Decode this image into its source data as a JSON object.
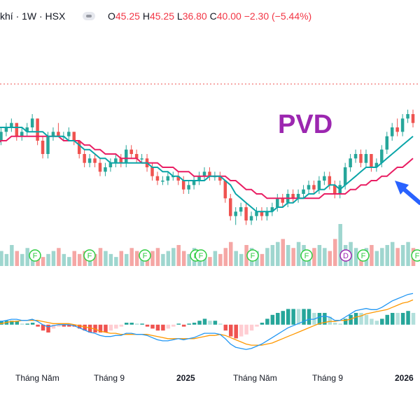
{
  "header": {
    "symbol_label": "khí · 1W · HSX",
    "open_label": "O",
    "open_value": "45.25",
    "high_label": "H",
    "high_value": "45.25",
    "low_label": "L",
    "low_value": "36.80",
    "close_label": "C",
    "close_value": "40.00",
    "change_value": "−2.30",
    "change_percent": "(−5.44%)"
  },
  "watermark": {
    "ticker": "PVD",
    "color": "#9c27b0"
  },
  "colors": {
    "up": "#26a69a",
    "down": "#ef5350",
    "ma_fast": "#0aa5a8",
    "ma_slow": "#e91e63",
    "macd_line": "#2196f3",
    "signal_line": "#ff9800",
    "dashed_level": "#ef5350",
    "arrow": "#2962ff"
  },
  "xaxis": {
    "labels": [
      "Tháng Năm",
      "Tháng 9",
      "2025",
      "Tháng Năm",
      "Tháng 9",
      "2026"
    ]
  },
  "event_markers": [
    {
      "label": "F"
    },
    {
      "label": "F"
    },
    {
      "label": "F"
    },
    {
      "label": "F"
    },
    {
      "label": "F"
    },
    {
      "label": "F"
    },
    {
      "label": "F"
    },
    {
      "label": "D"
    },
    {
      "label": "F"
    },
    {
      "label": "F"
    }
  ],
  "chart_data": {
    "type": "candlestick",
    "title": "",
    "note": "weekly candles, values in price units estimated from visual; no price axis printed",
    "candles": [
      [
        44,
        45,
        42,
        43
      ],
      [
        43,
        46,
        42,
        45
      ],
      [
        45,
        47,
        44,
        46
      ],
      [
        46,
        48,
        45,
        47
      ],
      [
        47,
        47,
        43,
        44
      ],
      [
        44,
        46,
        43,
        45
      ],
      [
        45,
        47,
        44,
        46
      ],
      [
        46,
        49,
        45,
        48
      ],
      [
        48,
        48,
        42,
        43
      ],
      [
        43,
        44,
        39,
        40
      ],
      [
        40,
        45,
        39,
        44
      ],
      [
        44,
        46,
        43,
        45
      ],
      [
        45,
        47,
        44,
        44
      ],
      [
        44,
        45,
        43,
        44
      ],
      [
        44,
        46,
        43,
        45
      ],
      [
        45,
        45,
        42,
        43
      ],
      [
        43,
        43,
        39,
        40
      ],
      [
        40,
        41,
        37,
        38
      ],
      [
        38,
        40,
        37,
        39
      ],
      [
        39,
        40,
        37,
        38
      ],
      [
        38,
        39,
        35,
        36
      ],
      [
        36,
        38,
        35,
        37
      ],
      [
        37,
        39,
        36,
        38
      ],
      [
        38,
        40,
        37,
        39
      ],
      [
        39,
        40,
        37,
        38
      ],
      [
        38,
        42,
        37,
        41
      ],
      [
        41,
        42,
        39,
        40
      ],
      [
        40,
        41,
        38,
        39
      ],
      [
        39,
        40,
        38,
        39
      ],
      [
        39,
        40,
        36,
        37
      ],
      [
        37,
        38,
        34,
        35
      ],
      [
        35,
        36,
        33,
        34
      ],
      [
        34,
        35,
        33,
        34
      ],
      [
        34,
        36,
        33,
        35
      ],
      [
        35,
        36,
        34,
        35
      ],
      [
        35,
        36,
        33,
        34
      ],
      [
        34,
        35,
        31,
        32
      ],
      [
        32,
        34,
        31,
        33
      ],
      [
        33,
        35,
        32,
        34
      ],
      [
        34,
        36,
        33,
        35
      ],
      [
        35,
        37,
        34,
        36
      ],
      [
        36,
        37,
        34,
        35
      ],
      [
        35,
        36,
        34,
        35
      ],
      [
        35,
        36,
        33,
        34
      ],
      [
        34,
        34,
        29,
        30
      ],
      [
        30,
        31,
        25,
        26
      ],
      [
        26,
        28,
        24,
        27
      ],
      [
        27,
        29,
        26,
        28
      ],
      [
        28,
        29,
        24,
        25
      ],
      [
        25,
        27,
        24,
        26
      ],
      [
        26,
        28,
        25,
        27
      ],
      [
        27,
        28,
        25,
        26
      ],
      [
        26,
        28,
        25,
        27
      ],
      [
        27,
        29,
        26,
        28
      ],
      [
        28,
        31,
        27,
        30
      ],
      [
        30,
        31,
        28,
        29
      ],
      [
        29,
        32,
        28,
        31
      ],
      [
        31,
        32,
        29,
        30
      ],
      [
        30,
        32,
        29,
        31
      ],
      [
        31,
        33,
        30,
        32
      ],
      [
        32,
        34,
        31,
        33
      ],
      [
        33,
        34,
        31,
        32
      ],
      [
        32,
        35,
        31,
        34
      ],
      [
        34,
        36,
        33,
        35
      ],
      [
        35,
        36,
        32,
        33
      ],
      [
        33,
        34,
        30,
        31
      ],
      [
        31,
        34,
        30,
        33
      ],
      [
        33,
        38,
        32,
        37
      ],
      [
        37,
        40,
        36,
        39
      ],
      [
        39,
        41,
        38,
        40
      ],
      [
        40,
        41,
        37,
        38
      ],
      [
        38,
        41,
        37,
        40
      ],
      [
        40,
        40,
        36,
        37
      ],
      [
        37,
        39,
        36,
        38
      ],
      [
        38,
        42,
        37,
        41
      ],
      [
        41,
        45,
        40,
        44
      ],
      [
        44,
        47,
        43,
        46
      ],
      [
        46,
        48,
        44,
        45
      ],
      [
        45,
        49,
        44,
        48
      ],
      [
        48,
        50,
        47,
        49
      ],
      [
        49,
        50,
        46,
        47
      ]
    ],
    "ma_fast": [
      46,
      46,
      46,
      46,
      46,
      46,
      45,
      45,
      45,
      45,
      44,
      44,
      44,
      44,
      43,
      43,
      42,
      41,
      41,
      40,
      39,
      39,
      38,
      38,
      38,
      38,
      38,
      38,
      38,
      38,
      37,
      37,
      36,
      36,
      35,
      35,
      34,
      34,
      34,
      34,
      34,
      35,
      35,
      35,
      34,
      33,
      31,
      30,
      29,
      28,
      27,
      27,
      27,
      27,
      28,
      28,
      29,
      29,
      30,
      30,
      31,
      31,
      32,
      32,
      33,
      33,
      32,
      33,
      34,
      35,
      36,
      37,
      37,
      37,
      38,
      39,
      40,
      41,
      42,
      43,
      44
    ],
    "ma_slow": [
      42,
      43,
      43,
      44,
      44,
      44,
      44,
      44,
      44,
      44,
      44,
      44,
      44,
      43,
      43,
      43,
      43,
      42,
      42,
      41,
      41,
      40,
      40,
      40,
      39,
      39,
      39,
      39,
      38,
      38,
      38,
      38,
      37,
      37,
      37,
      36,
      36,
      36,
      35,
      35,
      35,
      35,
      35,
      35,
      35,
      34,
      34,
      33,
      32,
      32,
      31,
      31,
      30,
      30,
      30,
      30,
      30,
      30,
      30,
      30,
      30,
      30,
      30,
      31,
      31,
      31,
      31,
      31,
      32,
      32,
      33,
      33,
      34,
      34,
      35,
      35,
      36,
      37,
      37,
      38,
      39
    ],
    "volume": [
      6,
      5,
      4,
      7,
      5,
      4,
      6,
      5,
      4,
      3,
      4,
      5,
      6,
      4,
      3,
      5,
      4,
      5,
      3,
      4,
      6,
      5,
      4,
      3,
      5,
      4,
      6,
      5,
      4,
      3,
      5,
      6,
      4,
      5,
      6,
      7,
      5,
      4,
      6,
      5,
      4,
      3,
      5,
      4,
      6,
      8,
      5,
      4,
      7,
      6,
      5,
      4,
      6,
      7,
      8,
      9,
      7,
      6,
      8,
      7,
      5,
      6,
      7,
      6,
      5,
      9,
      14,
      7,
      8,
      6,
      5,
      6,
      7,
      5,
      6,
      7,
      8,
      6,
      7,
      8,
      6
    ],
    "macd": [
      0.2,
      0.3,
      0.4,
      0.5,
      0.5,
      0.4,
      0.4,
      0.5,
      0.3,
      0.0,
      -0.2,
      -0.1,
      0.0,
      0.0,
      0.0,
      -0.1,
      -0.3,
      -0.5,
      -0.7,
      -0.8,
      -1.0,
      -1.1,
      -1.1,
      -1.0,
      -1.0,
      -0.8,
      -0.8,
      -0.9,
      -0.9,
      -1.0,
      -1.2,
      -1.4,
      -1.5,
      -1.5,
      -1.4,
      -1.3,
      -1.4,
      -1.3,
      -1.2,
      -1.0,
      -0.8,
      -0.8,
      -0.8,
      -0.9,
      -1.3,
      -1.8,
      -2.1,
      -2.2,
      -2.3,
      -2.2,
      -2.0,
      -1.8,
      -1.5,
      -1.2,
      -0.9,
      -0.6,
      -0.3,
      -0.1,
      0.1,
      0.3,
      0.5,
      0.5,
      0.7,
      0.8,
      0.7,
      0.4,
      0.4,
      0.7,
      1.0,
      1.3,
      1.4,
      1.5,
      1.4,
      1.4,
      1.6,
      1.9,
      2.2,
      2.4,
      2.6,
      2.8,
      2.9
    ],
    "signal": [
      0.1,
      0.1,
      0.2,
      0.3,
      0.3,
      0.4,
      0.4,
      0.4,
      0.4,
      0.3,
      0.2,
      0.1,
      0.1,
      0.1,
      0.1,
      0.0,
      -0.1,
      -0.2,
      -0.3,
      -0.4,
      -0.6,
      -0.7,
      -0.8,
      -0.8,
      -0.9,
      -0.9,
      -0.9,
      -0.9,
      -0.9,
      -0.9,
      -1.0,
      -1.1,
      -1.2,
      -1.3,
      -1.3,
      -1.3,
      -1.3,
      -1.3,
      -1.3,
      -1.2,
      -1.1,
      -1.0,
      -1.0,
      -0.9,
      -1.0,
      -1.2,
      -1.4,
      -1.6,
      -1.8,
      -1.9,
      -1.9,
      -1.9,
      -1.8,
      -1.7,
      -1.5,
      -1.3,
      -1.1,
      -0.9,
      -0.7,
      -0.5,
      -0.3,
      -0.1,
      0.1,
      0.2,
      0.3,
      0.3,
      0.4,
      0.4,
      0.5,
      0.7,
      0.8,
      1.0,
      1.1,
      1.2,
      1.3,
      1.4,
      1.6,
      1.8,
      2.0,
      2.1,
      2.3
    ]
  }
}
